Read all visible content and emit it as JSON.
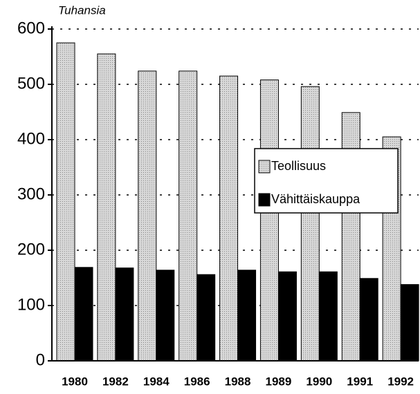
{
  "chart_data": {
    "type": "bar",
    "y_label": "Tuhansia",
    "categories": [
      "1980",
      "1982",
      "1984",
      "1986",
      "1988",
      "1989",
      "1990",
      "1991",
      "1992"
    ],
    "series": [
      {
        "name": "Teollisuus",
        "color": "#c4c4c4",
        "values": [
          575,
          555,
          524,
          524,
          515,
          508,
          496,
          449,
          405
        ]
      },
      {
        "name": "Vähittäiskauppa",
        "color": "#000000",
        "values": [
          169,
          168,
          164,
          156,
          164,
          161,
          161,
          149,
          138
        ]
      }
    ],
    "ylim": [
      0,
      600
    ],
    "yticks": [
      0,
      100,
      200,
      300,
      400,
      500,
      600
    ],
    "grid": true
  }
}
